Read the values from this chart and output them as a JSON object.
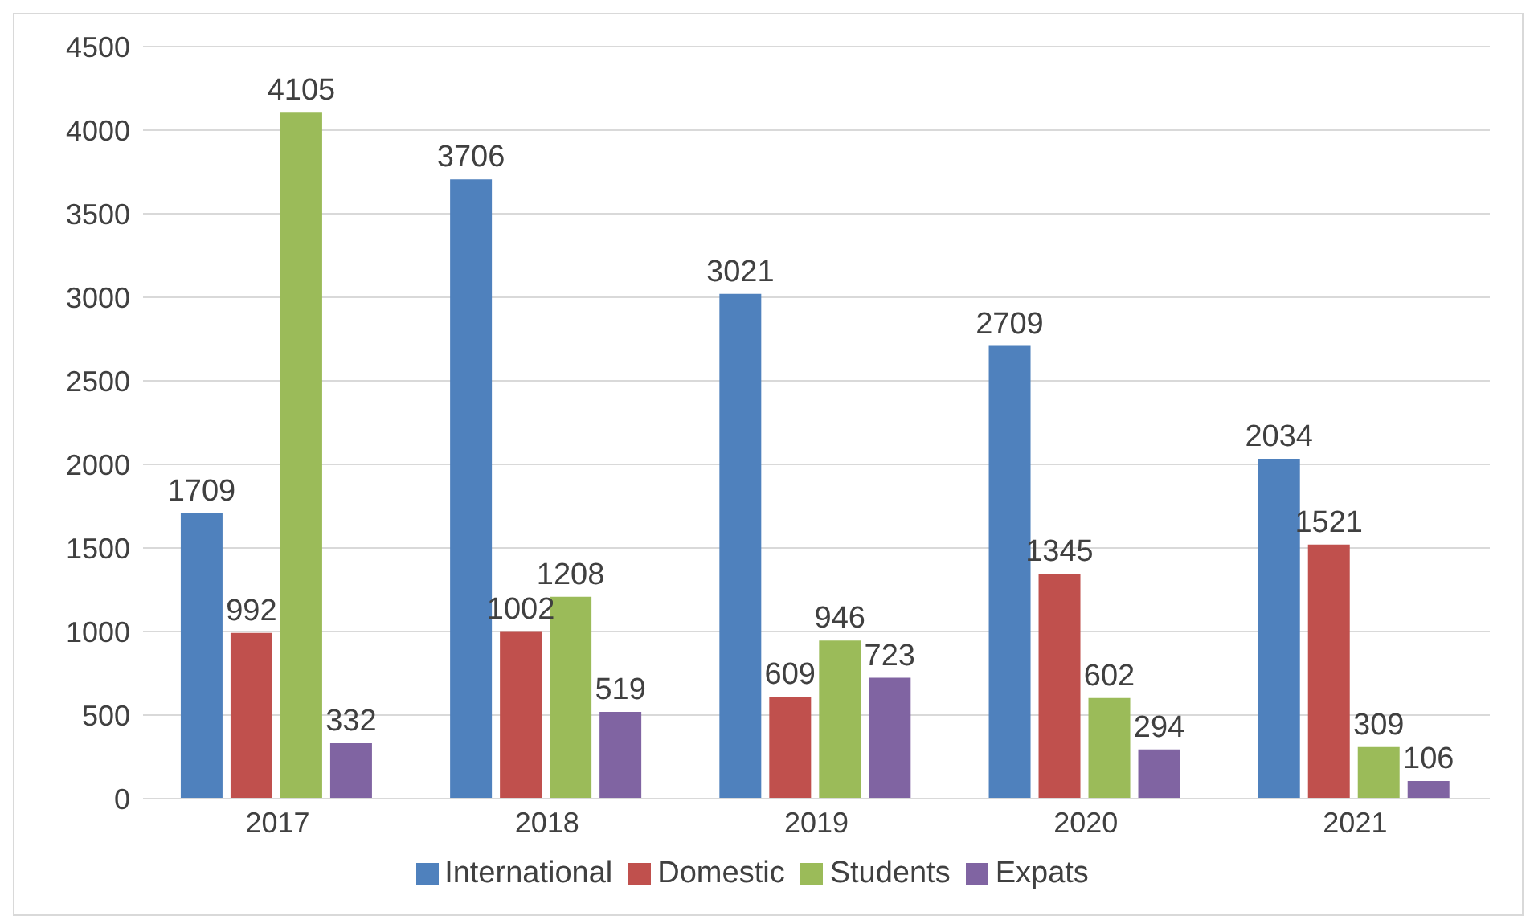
{
  "chart_data": {
    "type": "bar",
    "categories": [
      "2017",
      "2018",
      "2019",
      "2020",
      "2021"
    ],
    "series": [
      {
        "name": "International",
        "color": "#4f81bd",
        "values": [
          1709,
          3706,
          3021,
          2709,
          2034
        ]
      },
      {
        "name": "Domestic",
        "color": "#c0504d",
        "values": [
          992,
          1002,
          609,
          1345,
          1521
        ]
      },
      {
        "name": "Students",
        "color": "#9bbb59",
        "values": [
          4105,
          1208,
          946,
          602,
          309
        ]
      },
      {
        "name": "Expats",
        "color": "#8064a2",
        "values": [
          332,
          519,
          723,
          294,
          106
        ]
      }
    ],
    "ylim": [
      0,
      4500
    ],
    "yticks": [
      0,
      500,
      1000,
      1500,
      2000,
      2500,
      3000,
      3500,
      4000,
      4500
    ],
    "grid": "y",
    "legend": "bottom",
    "data_labels": true
  }
}
